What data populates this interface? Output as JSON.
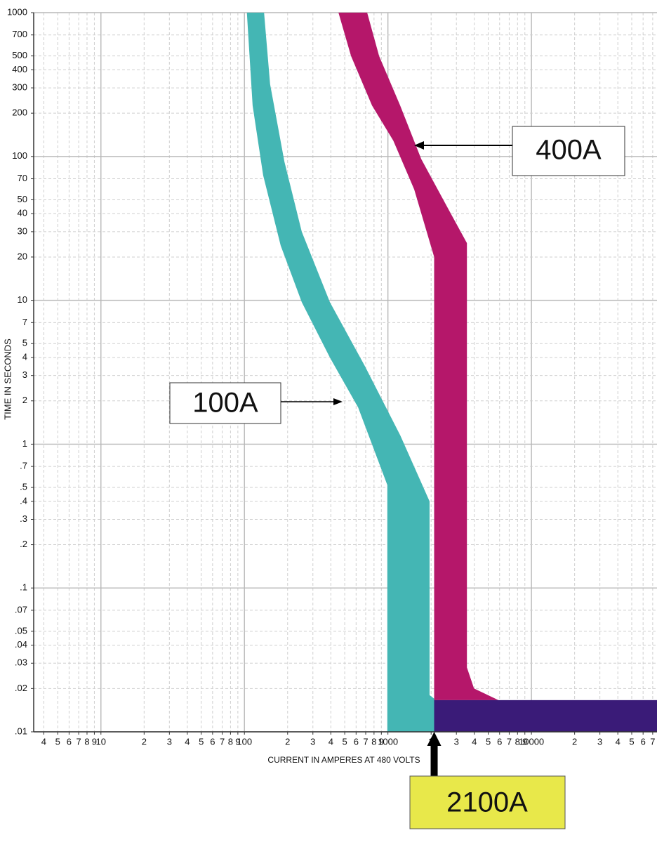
{
  "chart_data": {
    "type": "area",
    "xlabel": "CURRENT IN AMPERES AT 480 VOLTS",
    "ylabel": "TIME IN SECONDS",
    "xscale": "log",
    "yscale": "log",
    "grid": true,
    "xlim": [
      3.4,
      75000
    ],
    "ylim": [
      0.01,
      1000
    ],
    "xticks": [
      4,
      5,
      6,
      7,
      8,
      9,
      10,
      {
        "value": 20,
        "label": "2"
      },
      {
        "value": 30,
        "label": "3"
      },
      {
        "value": 40,
        "label": "4"
      },
      {
        "value": 50,
        "label": "5"
      },
      {
        "value": 60,
        "label": "6"
      },
      {
        "value": 70,
        "label": "7"
      },
      {
        "value": 80,
        "label": "8"
      },
      {
        "value": 90,
        "label": "9"
      },
      100,
      {
        "value": 200,
        "label": "2"
      },
      {
        "value": 300,
        "label": "3"
      },
      {
        "value": 400,
        "label": "4"
      },
      {
        "value": 500,
        "label": "5"
      },
      {
        "value": 600,
        "label": "6"
      },
      {
        "value": 700,
        "label": "7"
      },
      {
        "value": 800,
        "label": "8"
      },
      {
        "value": 900,
        "label": "9"
      },
      1000,
      {
        "value": 2000,
        "label": "2"
      },
      {
        "value": 3000,
        "label": "3"
      },
      {
        "value": 4000,
        "label": "4"
      },
      {
        "value": 5000,
        "label": "5"
      },
      {
        "value": 6000,
        "label": "6"
      },
      {
        "value": 7000,
        "label": "7"
      },
      {
        "value": 8000,
        "label": "8"
      },
      {
        "value": 9000,
        "label": "9"
      },
      10000,
      {
        "value": 20000,
        "label": "2"
      },
      {
        "value": 30000,
        "label": "3"
      },
      {
        "value": 40000,
        "label": "4"
      },
      {
        "value": 50000,
        "label": "5"
      },
      {
        "value": 60000,
        "label": "6"
      },
      {
        "value": 70000,
        "label": "7"
      }
    ],
    "yticks": [
      1000,
      700,
      500,
      400,
      300,
      200,
      100,
      70,
      50,
      40,
      30,
      20,
      10,
      7,
      5,
      4,
      3,
      2,
      1,
      {
        "value": 0.7,
        "label": ".7"
      },
      {
        "value": 0.5,
        "label": ".5"
      },
      {
        "value": 0.4,
        "label": ".4"
      },
      {
        "value": 0.3,
        "label": ".3"
      },
      {
        "value": 0.2,
        "label": ".2"
      },
      {
        "value": 0.1,
        "label": ".1"
      },
      {
        "value": 0.07,
        "label": ".07"
      },
      {
        "value": 0.05,
        "label": ".05"
      },
      {
        "value": 0.04,
        "label": ".04"
      },
      {
        "value": 0.03,
        "label": ".03"
      },
      {
        "value": 0.02,
        "label": ".02"
      },
      {
        "value": 0.01,
        "label": ".01"
      }
    ],
    "series": [
      {
        "name": "100A",
        "color": "#44b6b4",
        "x": [
          104,
          114,
          135,
          179,
          251,
          394,
          620,
          990,
          990,
          2100,
          2100,
          1950,
          1950,
          1220,
          690,
          394,
          251,
          190,
          151,
          137
        ],
        "y": [
          1000,
          226,
          74,
          24,
          9.7,
          4,
          1.8,
          0.52,
          0.01,
          0.01,
          0.017,
          0.018,
          0.4,
          1.15,
          3.5,
          9.7,
          30,
          92,
          318,
          1000
        ]
      },
      {
        "name": "400A",
        "color": "#b5176a",
        "x": [
          452,
          553,
          775,
          1090,
          1525,
          2100,
          2100,
          5890,
          3980,
          3550,
          3550,
          2675,
          1707,
          1217,
          868,
          717
        ],
        "y": [
          1000,
          500,
          226,
          129,
          59,
          20,
          0.0166,
          0.0166,
          0.02,
          0.028,
          25,
          42,
          96,
          226,
          500,
          1000
        ]
      },
      {
        "color": "#3a1b78",
        "x": [
          2100,
          75000,
          75000,
          2100
        ],
        "y": [
          0.01,
          0.01,
          0.0166,
          0.0166
        ]
      }
    ],
    "annotations": [
      {
        "text": "2100A",
        "x": 2100
      }
    ]
  }
}
